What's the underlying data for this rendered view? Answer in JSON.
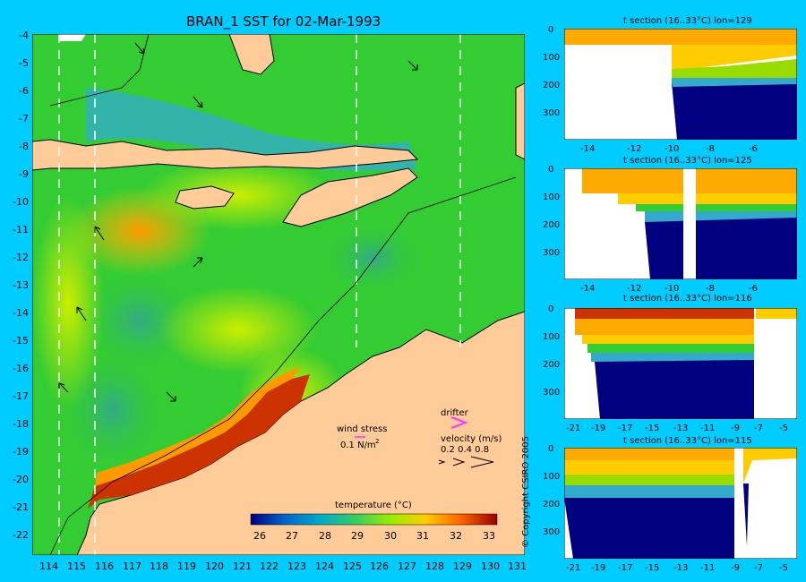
{
  "map": {
    "title": "BRAN_1 SST for 02-Mar-1993",
    "lat_ticks": [
      "-4",
      "-5",
      "-6",
      "-7",
      "-8",
      "-9",
      "-10",
      "-11",
      "-12",
      "-13",
      "-14",
      "-15",
      "-16",
      "-17",
      "-18",
      "-19",
      "-20",
      "-21",
      "-22"
    ],
    "lon_ticks": [
      "114",
      "115",
      "116",
      "117",
      "118",
      "119",
      "120",
      "121",
      "122",
      "123",
      "124",
      "125",
      "126",
      "127",
      "128",
      "129",
      "130",
      "131"
    ],
    "legend_wind_label": "wind stress",
    "legend_wind_value": "0.1 N/m",
    "legend_wind_sup": "2",
    "legend_drifter": "drifter",
    "legend_velocity": "velocity (m/s)",
    "legend_velocity_values": "0.2 0.4 0.8",
    "colorbar_title": "temperature (°C)",
    "colorbar_ticks": [
      "26",
      "27",
      "28",
      "29",
      "30",
      "31",
      "32",
      "33"
    ],
    "colors": {
      "warm": "#990000",
      "land": "#ffcc99",
      "ocean_green": "#33cc33",
      "ocean_blue": "#33aaaa",
      "drifter": "#ff33ff"
    }
  },
  "sections": [
    {
      "title": "t section (16..33°C) lon=129",
      "x_ticks": [
        "-14",
        "-12",
        "-10",
        "-8",
        "-6"
      ],
      "y_ticks": [
        "0",
        "100",
        "200",
        "300"
      ]
    },
    {
      "title": "t section (16..33°C) lon=125",
      "x_ticks": [
        "-14",
        "-12",
        "-10",
        "-8",
        "-6"
      ],
      "y_ticks": [
        "0",
        "100",
        "200",
        "300"
      ]
    },
    {
      "title": "t section (16..33°C) lon=116",
      "x_ticks": [
        "-21",
        "-19",
        "-17",
        "-15",
        "-13",
        "-11",
        "-9",
        "-7",
        "-5"
      ],
      "y_ticks": [
        "0",
        "100",
        "200",
        "300"
      ]
    },
    {
      "title": "t section (16..33°C) lon=115",
      "x_ticks": [
        "-21",
        "-19",
        "-17",
        "-15",
        "-13",
        "-11",
        "-9",
        "-7",
        "-5"
      ],
      "y_ticks": [
        "0",
        "100",
        "200",
        "300"
      ]
    }
  ],
  "copyright": "© Copyright CSIRO 2005"
}
